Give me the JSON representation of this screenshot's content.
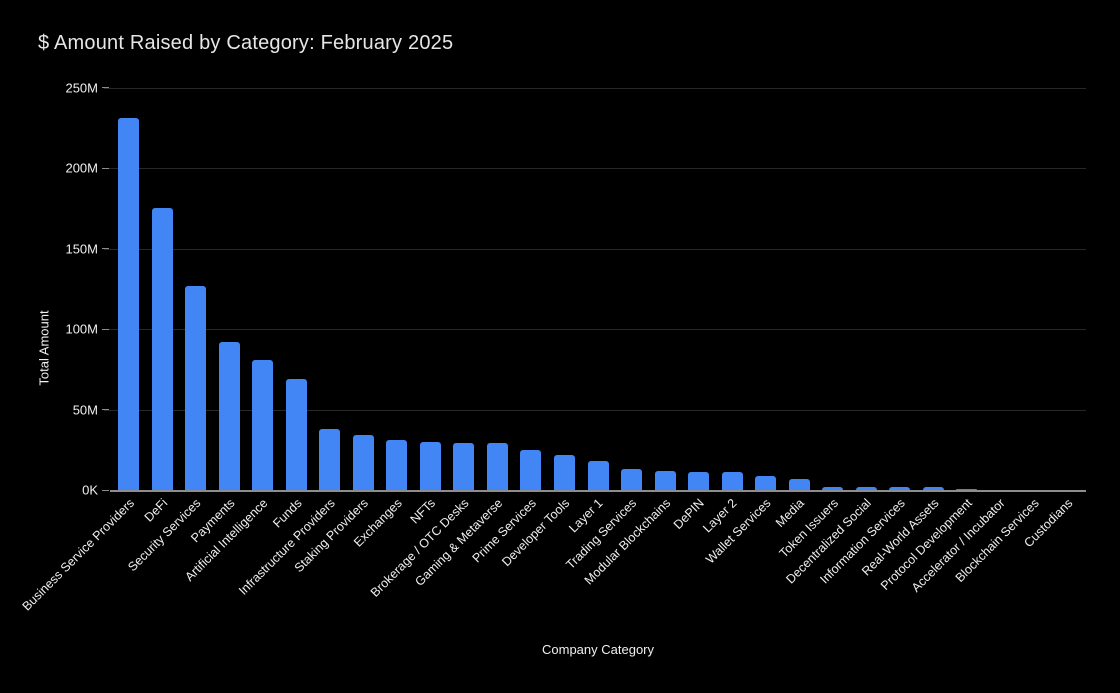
{
  "chart_data": {
    "type": "bar",
    "title": "$ Amount Raised by Category: February 2025",
    "xlabel": "Company Category",
    "ylabel": "Total Amount",
    "categories": [
      "Business Service Providers",
      "DeFi",
      "Security Services",
      "Payments",
      "Artificial Intelligence",
      "Funds",
      "Infrastructure Providers",
      "Staking Providers",
      "Exchanges",
      "NFTs",
      "Brokerage / OTC Desks",
      "Gaming & Metaverse",
      "Prime Services",
      "Developer Tools",
      "Layer 1",
      "Trading Services",
      "Modular Blockchains",
      "DePIN",
      "Layer 2",
      "Wallet Services",
      "Media",
      "Token Issuers",
      "Decentralized Social",
      "Information Services",
      "Real-World Assets",
      "Protocol Development",
      "Accelerator / Incubator",
      "Blockchain Services",
      "Custodians"
    ],
    "values": [
      231,
      175,
      127,
      92,
      81,
      69,
      38,
      34,
      31,
      30,
      29.5,
      29,
      25,
      22,
      18,
      13,
      12,
      11,
      11,
      9,
      7,
      2,
      1.8,
      1.7,
      1.6,
      0.8,
      0.3,
      0.2,
      0.1
    ],
    "values_unit": "M",
    "ylim": [
      0,
      250
    ],
    "ytick_values": [
      0,
      50,
      100,
      150,
      200,
      250
    ],
    "ytick_labels": [
      "0K",
      "50M",
      "100M",
      "150M",
      "200M",
      "250M"
    ],
    "grid": "horizontal",
    "legend_position": "none",
    "colors": {
      "background": "#000000",
      "bar": "#4285F4",
      "gridline": "#282828",
      "axis_line": "#8d8d8d",
      "title_text": "#E6E6E6",
      "tick_text": "#EFEFEF"
    }
  }
}
